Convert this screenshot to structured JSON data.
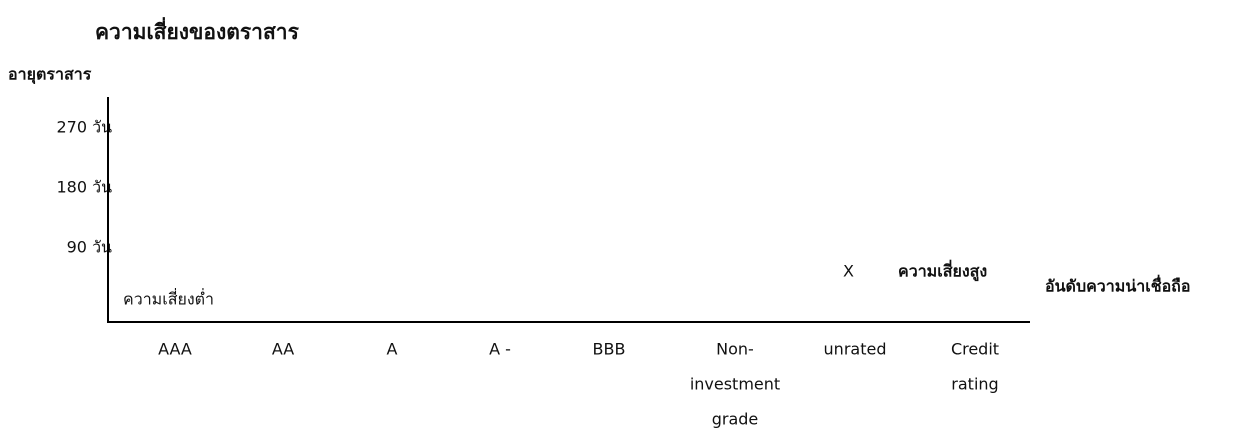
{
  "title": "ความเสี่ยงของตราสาร",
  "y_axis": {
    "label": "อายุตราสาร",
    "labels": [
      "270 วัน",
      "180 วัน",
      "90 วัน"
    ]
  },
  "x_axis": {
    "label": "อันดับความน่าเชื่อถือ",
    "categories": [
      [
        "AAA"
      ],
      [
        "AA"
      ],
      [
        "A"
      ],
      [
        "A -"
      ],
      [
        "BBB"
      ],
      [
        "Non-",
        "investment",
        "grade"
      ],
      [
        "unrated"
      ],
      [
        "Credit",
        "rating"
      ]
    ]
  },
  "annotations": {
    "low_risk": "ความเสี่ยงต่ำ",
    "marker": "X",
    "high_risk": "ความเสี่ยงสูง"
  }
}
